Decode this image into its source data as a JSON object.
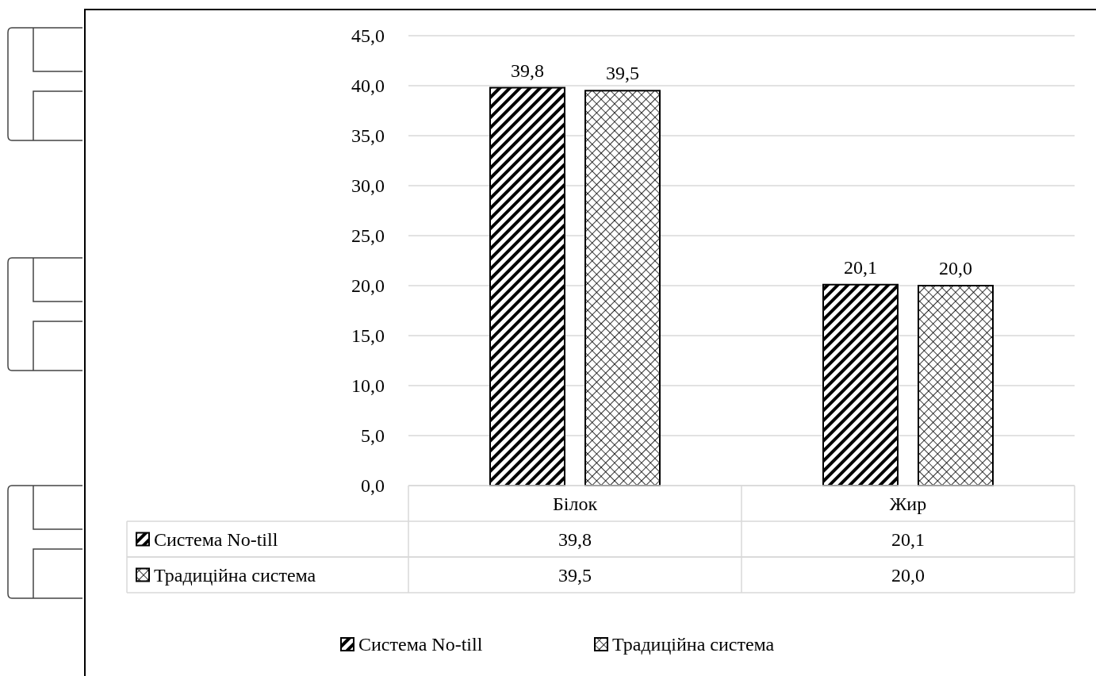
{
  "chart_data": {
    "type": "bar",
    "categories": [
      "Білок",
      "Жир"
    ],
    "series": [
      {
        "name": "Система No-till",
        "color": "#000000",
        "values": [
          39.8,
          20.1
        ],
        "value_labels": [
          "39,8",
          "20,1"
        ]
      },
      {
        "name": "Традиційна система",
        "color": "#000000",
        "values": [
          39.5,
          20.0
        ],
        "value_labels": [
          "39,5",
          "20,0"
        ]
      }
    ],
    "ylim": [
      0,
      45
    ],
    "yticks": [
      {
        "value": 0,
        "label": "0,0"
      },
      {
        "value": 5,
        "label": "5,0"
      },
      {
        "value": 10,
        "label": "10,0"
      },
      {
        "value": 15,
        "label": "15,0"
      },
      {
        "value": 20,
        "label": "20,0"
      },
      {
        "value": 25,
        "label": "25,0"
      },
      {
        "value": 30,
        "label": "30,0"
      },
      {
        "value": 35,
        "label": "35,0"
      },
      {
        "value": 40,
        "label": "40,0"
      },
      {
        "value": 45,
        "label": "45,0"
      }
    ],
    "grid": "y",
    "legend": "bottom"
  }
}
